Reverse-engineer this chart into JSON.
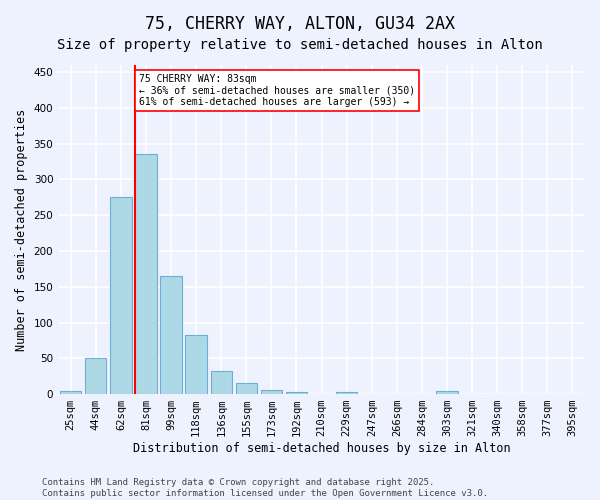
{
  "title_line1": "75, CHERRY WAY, ALTON, GU34 2AX",
  "title_line2": "Size of property relative to semi-detached houses in Alton",
  "xlabel": "Distribution of semi-detached houses by size in Alton",
  "ylabel": "Number of semi-detached properties",
  "categories": [
    "25sqm",
    "44sqm",
    "62sqm",
    "81sqm",
    "99sqm",
    "118sqm",
    "136sqm",
    "155sqm",
    "173sqm",
    "192sqm",
    "210sqm",
    "229sqm",
    "247sqm",
    "266sqm",
    "284sqm",
    "303sqm",
    "321sqm",
    "340sqm",
    "358sqm",
    "377sqm",
    "395sqm"
  ],
  "values": [
    5,
    50,
    275,
    335,
    165,
    82,
    32,
    15,
    6,
    3,
    0,
    3,
    0,
    0,
    0,
    4,
    0,
    0,
    0,
    0,
    0
  ],
  "bar_color": "#add8e6",
  "bar_edge_color": "#6baed6",
  "vline_color": "red",
  "annotation_text": "75 CHERRY WAY: 83sqm\n← 36% of semi-detached houses are smaller (350)\n61% of semi-detached houses are larger (593) →",
  "annotation_box_color": "white",
  "annotation_box_edge_color": "red",
  "ylim": [
    0,
    460
  ],
  "yticks": [
    0,
    50,
    100,
    150,
    200,
    250,
    300,
    350,
    400,
    450
  ],
  "footer_text": "Contains HM Land Registry data © Crown copyright and database right 2025.\nContains public sector information licensed under the Open Government Licence v3.0.",
  "background_color": "#eef2ff",
  "grid_color": "white",
  "title_fontsize": 12,
  "subtitle_fontsize": 10,
  "axis_label_fontsize": 8.5,
  "tick_fontsize": 7.5,
  "footer_fontsize": 6.5
}
